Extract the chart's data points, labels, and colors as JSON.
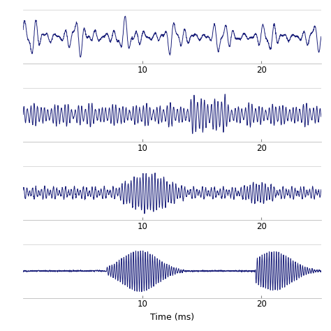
{
  "line_color": "#1a1f7a",
  "background_color": "#ffffff",
  "xlabel": "Time (ms)",
  "xlabel_fontsize": 9,
  "tick_fontsize": 8.5,
  "x_ticks": [
    10,
    20
  ],
  "x_range": [
    0,
    25
  ],
  "n_subplots": 4,
  "linewidth": 0.7,
  "figsize": [
    4.74,
    4.74
  ],
  "dpi": 100,
  "hspace": 0.45
}
